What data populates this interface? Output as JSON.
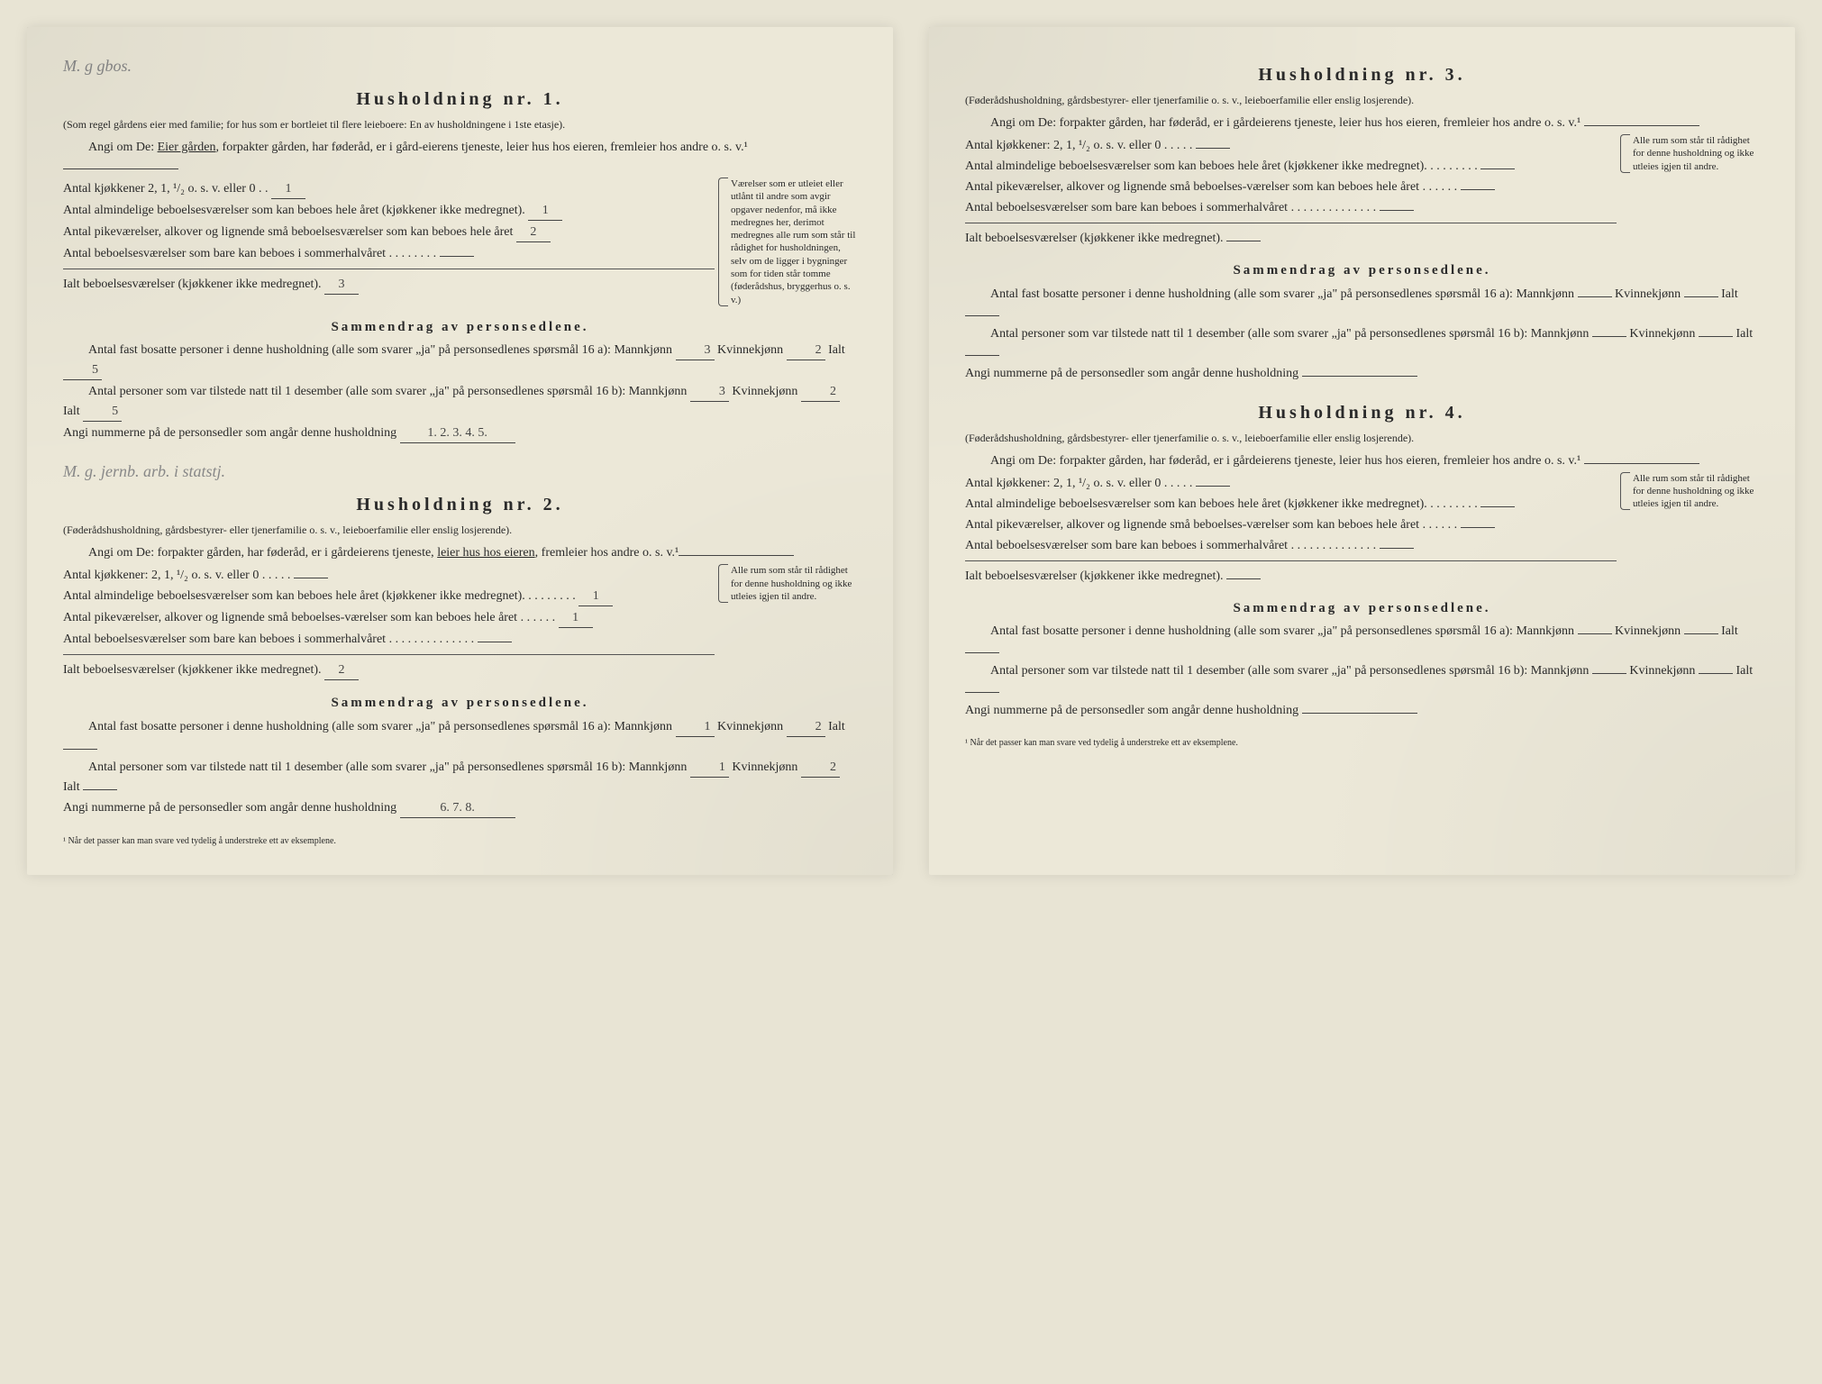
{
  "households": [
    {
      "pencil_note": "M. g gbos.",
      "title": "Husholdning nr. 1.",
      "subtitle": "(Som regel gårdens eier med familie; for hus som er bortleiet til flere leieboere: En av husholdningene i 1ste etasje).",
      "angi_prefix": "Angi om De:",
      "angi_options": "Eier gården, forpakter gården, har føderåd, er i gård-eierens tjeneste, leier hus hos eieren, fremleier hos andre o. s. v.¹",
      "angi_underlined": "Eier gården",
      "kitchens_label": "Antal kjøkkener 2, 1, ¹/₂ o. s. v. eller 0",
      "kitchens_val": "1",
      "rooms_year_label": "Antal almindelige beboelsesværelser som kan beboes hele året (kjøkkener ikke medregnet).",
      "rooms_year_val": "1",
      "maid_rooms_label": "Antal pikeværelser, alkover og lignende små beboelsesværelser som kan beboes hele året",
      "maid_rooms_val": "2",
      "summer_rooms_label": "Antal beboelsesværelser som bare kan beboes i sommerhalvåret",
      "summer_rooms_val": "",
      "total_rooms_label": "Ialt beboelsesværelser (kjøkkener ikke medregnet).",
      "total_rooms_val": "3",
      "side_note": "Værelser som er utleiet eller utlånt til andre som avgir opgaver nedenfor, må ikke medregnes her, derimot medregnes alle rum som står til rådighet for husholdningen, selv om de ligger i bygninger som for tiden står tomme (føderådshus, bryggerhus o. s. v.)",
      "summary_title": "Sammendrag av personsedlene.",
      "p16a_label": "Antal fast bosatte personer i denne husholdning (alle som svarer „ja\" på personsedlenes spørsmål 16 a): Mannkjønn",
      "p16a_m": "3",
      "p16a_k_label": "Kvinnekjønn",
      "p16a_k": "2",
      "p16a_i_label": "Ialt",
      "p16a_i": "5",
      "p16b_label": "Antal personer som var tilstede natt til 1 desember (alle som svarer „ja\" på personsedlenes spørsmål 16 b): Mannkjønn",
      "p16b_m": "3",
      "p16b_k": "2",
      "p16b_i": "5",
      "nums_label": "Angi nummerne på de personsedler som angår denne husholdning",
      "nums_val": "1. 2. 3. 4. 5."
    },
    {
      "pencil_note": "M. g. jernb. arb. i statstj.",
      "title": "Husholdning nr. 2.",
      "subtitle": "(Føderådshusholdning, gårdsbestyrer- eller tjenerfamilie o. s. v., leieboerfamilie eller enslig losjerende).",
      "angi_prefix": "Angi om De:",
      "angi_options": "forpakter gården, har føderåd, er i gårdeierens tjeneste, leier hus hos eieren, fremleier hos andre o. s. v.¹",
      "angi_underlined": "leier hus hos eieren",
      "kitchens_label": "Antal kjøkkener: 2, 1, ¹/₂ o. s. v. eller 0",
      "kitchens_val": "",
      "rooms_year_label": "Antal almindelige beboelsesværelser som kan beboes hele året (kjøkkener ikke medregnet).",
      "rooms_year_val": "1",
      "maid_rooms_label": "Antal pikeværelser, alkover og lignende små beboelses-værelser som kan beboes hele året",
      "maid_rooms_val": "1",
      "summer_rooms_label": "Antal beboelsesværelser som bare kan beboes i sommerhalvåret",
      "summer_rooms_val": "",
      "total_rooms_label": "Ialt beboelsesværelser (kjøkkener ikke medregnet).",
      "total_rooms_val": "2",
      "side_note": "Alle rum som står til rådighet for denne husholdning og ikke utleies igjen til andre.",
      "summary_title": "Sammendrag av personsedlene.",
      "p16a_label": "Antal fast bosatte personer i denne husholdning (alle som svarer „ja\" på personsedlenes spørsmål 16 a): Mannkjønn",
      "p16a_m": "1",
      "p16a_k_label": "Kvinnekjønn",
      "p16a_k": "2",
      "p16a_i_label": "Ialt",
      "p16a_i": "",
      "p16b_label": "Antal personer som var tilstede natt til 1 desember (alle som svarer „ja\" på personsedlenes spørsmål 16 b): Mannkjønn",
      "p16b_m": "1",
      "p16b_k": "2",
      "p16b_i": "",
      "nums_label": "Angi nummerne på de personsedler som angår denne husholdning",
      "nums_val": "6. 7. 8."
    },
    {
      "pencil_note": "",
      "title": "Husholdning nr. 3.",
      "subtitle": "(Føderådshusholdning, gårdsbestyrer- eller tjenerfamilie o. s. v., leieboerfamilie eller enslig losjerende).",
      "angi_prefix": "Angi om De:",
      "angi_options": "forpakter gården, har føderåd, er i gårdeierens tjeneste, leier hus hos eieren, fremleier hos andre o. s. v.¹",
      "angi_underlined": "",
      "kitchens_label": "Antal kjøkkener: 2, 1, ¹/₂ o. s. v. eller 0",
      "kitchens_val": "",
      "rooms_year_label": "Antal almindelige beboelsesværelser som kan beboes hele året (kjøkkener ikke medregnet).",
      "rooms_year_val": "",
      "maid_rooms_label": "Antal pikeværelser, alkover og lignende små beboelses-værelser som kan beboes hele året",
      "maid_rooms_val": "",
      "summer_rooms_label": "Antal beboelsesværelser som bare kan beboes i sommerhalvåret",
      "summer_rooms_val": "",
      "total_rooms_label": "Ialt beboelsesværelser (kjøkkener ikke medregnet).",
      "total_rooms_val": "",
      "side_note": "Alle rum som står til rådighet for denne husholdning og ikke utleies igjen til andre.",
      "summary_title": "Sammendrag av personsedlene.",
      "p16a_label": "Antal fast bosatte personer i denne husholdning (alle som svarer „ja\" på personsedlenes spørsmål 16 a): Mannkjønn",
      "p16a_m": "",
      "p16a_k_label": "Kvinnekjønn",
      "p16a_k": "",
      "p16a_i_label": "Ialt",
      "p16a_i": "",
      "p16b_label": "Antal personer som var tilstede natt til 1 desember (alle som svarer „ja\" på personsedlenes spørsmål 16 b): Mannkjønn",
      "p16b_m": "",
      "p16b_k": "",
      "p16b_i": "",
      "nums_label": "Angi nummerne på de personsedler som angår denne husholdning",
      "nums_val": ""
    },
    {
      "pencil_note": "",
      "title": "Husholdning nr. 4.",
      "subtitle": "(Føderådshusholdning, gårdsbestyrer- eller tjenerfamilie o. s. v., leieboerfamilie eller enslig losjerende).",
      "angi_prefix": "Angi om De:",
      "angi_options": "forpakter gården, har føderåd, er i gårdeierens tjeneste, leier hus hos eieren, fremleier hos andre o. s. v.¹",
      "angi_underlined": "",
      "kitchens_label": "Antal kjøkkener: 2, 1, ¹/₂ o. s. v. eller 0",
      "kitchens_val": "",
      "rooms_year_label": "Antal almindelige beboelsesværelser som kan beboes hele året (kjøkkener ikke medregnet).",
      "rooms_year_val": "",
      "maid_rooms_label": "Antal pikeværelser, alkover og lignende små beboelses-værelser som kan beboes hele året",
      "maid_rooms_val": "",
      "summer_rooms_label": "Antal beboelsesværelser som bare kan beboes i sommerhalvåret",
      "summer_rooms_val": "",
      "total_rooms_label": "Ialt beboelsesværelser (kjøkkener ikke medregnet).",
      "total_rooms_val": "",
      "side_note": "Alle rum som står til rådighet for denne husholdning og ikke utleies igjen til andre.",
      "summary_title": "Sammendrag av personsedlene.",
      "p16a_label": "Antal fast bosatte personer i denne husholdning (alle som svarer „ja\" på personsedlenes spørsmål 16 a): Mannkjønn",
      "p16a_m": "",
      "p16a_k_label": "Kvinnekjønn",
      "p16a_k": "",
      "p16a_i_label": "Ialt",
      "p16a_i": "",
      "p16b_label": "Antal personer som var tilstede natt til 1 desember (alle som svarer „ja\" på personsedlenes spørsmål 16 b): Mannkjønn",
      "p16b_m": "",
      "p16b_k": "",
      "p16b_i": "",
      "nums_label": "Angi nummerne på de personsedler som angår denne husholdning",
      "nums_val": ""
    }
  ],
  "footnote": "¹ Når det passer kan man svare ved tydelig å understreke ett av eksemplene."
}
